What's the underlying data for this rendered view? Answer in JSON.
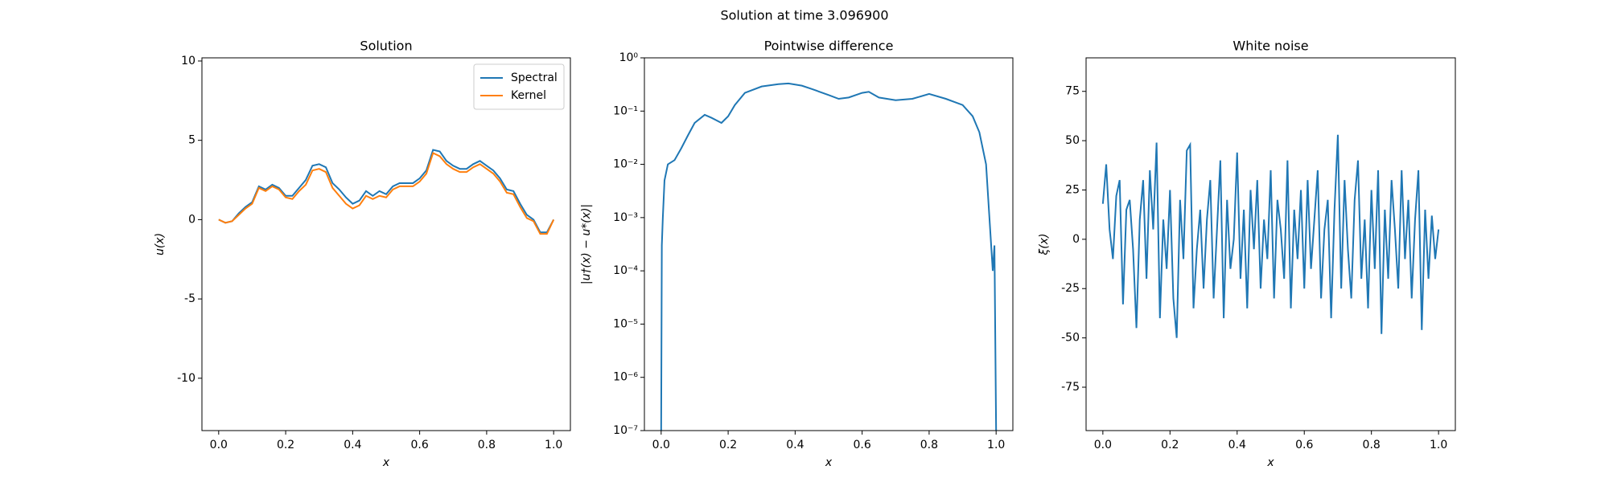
{
  "title": "Solution at time 3.096900",
  "chart_data": [
    {
      "type": "line",
      "title": "Solution",
      "xlabel": "x",
      "ylabel": "u(x)",
      "x": [
        0,
        0.02,
        0.04,
        0.06,
        0.08,
        0.1,
        0.12,
        0.14,
        0.16,
        0.18,
        0.2,
        0.22,
        0.24,
        0.26,
        0.28,
        0.3,
        0.32,
        0.34,
        0.36,
        0.38,
        0.4,
        0.42,
        0.44,
        0.46,
        0.48,
        0.5,
        0.52,
        0.54,
        0.56,
        0.58,
        0.6,
        0.62,
        0.64,
        0.66,
        0.68,
        0.7,
        0.72,
        0.74,
        0.76,
        0.78,
        0.8,
        0.82,
        0.84,
        0.86,
        0.88,
        0.9,
        0.92,
        0.94,
        0.96,
        0.98,
        1.0
      ],
      "series": [
        {
          "name": "Spectral",
          "color": "#1f77b4",
          "values": [
            0,
            -0.2,
            -0.1,
            0.4,
            0.8,
            1.1,
            2.1,
            1.9,
            2.2,
            2.0,
            1.5,
            1.5,
            2.0,
            2.5,
            3.4,
            3.5,
            3.3,
            2.3,
            1.9,
            1.4,
            1.0,
            1.2,
            1.8,
            1.5,
            1.8,
            1.6,
            2.1,
            2.3,
            2.3,
            2.3,
            2.6,
            3.1,
            4.4,
            4.3,
            3.7,
            3.4,
            3.2,
            3.2,
            3.5,
            3.7,
            3.4,
            3.1,
            2.6,
            1.9,
            1.8,
            1.0,
            0.3,
            0,
            -0.8,
            -0.8,
            0
          ]
        },
        {
          "name": "Kernel",
          "color": "#ff7f0e",
          "values": [
            0,
            -0.2,
            -0.1,
            0.3,
            0.7,
            1.0,
            2.0,
            1.8,
            2.1,
            1.9,
            1.4,
            1.3,
            1.8,
            2.2,
            3.1,
            3.2,
            3.0,
            2.0,
            1.5,
            1.0,
            0.7,
            0.9,
            1.5,
            1.3,
            1.5,
            1.4,
            1.9,
            2.1,
            2.1,
            2.1,
            2.4,
            2.9,
            4.2,
            4.0,
            3.5,
            3.2,
            3.0,
            3.0,
            3.3,
            3.5,
            3.2,
            2.9,
            2.4,
            1.7,
            1.6,
            0.8,
            0.1,
            -0.1,
            -0.9,
            -0.9,
            0
          ]
        }
      ],
      "xlim": [
        -0.05,
        1.05
      ],
      "ylim": [
        -13.3,
        10.2
      ],
      "xticks": [
        {
          "value": 0,
          "label": "0.0"
        },
        0.2,
        0.4,
        0.6,
        0.8,
        {
          "value": 1,
          "label": "1.0"
        }
      ],
      "yticks": [
        -10,
        -5,
        0,
        5,
        10
      ],
      "legend": "upper right"
    },
    {
      "type": "line",
      "title": "Pointwise difference",
      "xlabel": "x",
      "ylabel": "|u†(x) − u*(x)|",
      "log_y": true,
      "x": [
        0,
        0.002,
        0.005,
        0.01,
        0.02,
        0.04,
        0.06,
        0.08,
        0.1,
        0.13,
        0.15,
        0.18,
        0.2,
        0.22,
        0.25,
        0.3,
        0.35,
        0.38,
        0.42,
        0.45,
        0.5,
        0.53,
        0.56,
        0.6,
        0.62,
        0.65,
        0.7,
        0.75,
        0.8,
        0.85,
        0.9,
        0.93,
        0.95,
        0.97,
        0.98,
        0.99,
        0.995,
        1.0
      ],
      "series": [
        {
          "color": "#1f77b4",
          "values": [
            1e-07,
            0.0003,
            0.001,
            0.005,
            0.01,
            0.012,
            0.02,
            0.035,
            0.06,
            0.085,
            0.075,
            0.06,
            0.08,
            0.13,
            0.22,
            0.29,
            0.32,
            0.33,
            0.3,
            0.26,
            0.2,
            0.17,
            0.18,
            0.22,
            0.23,
            0.18,
            0.16,
            0.17,
            0.21,
            0.17,
            0.13,
            0.08,
            0.04,
            0.01,
            0.001,
            0.0001,
            0.0003,
            1e-07
          ]
        }
      ],
      "xlim": [
        -0.05,
        1.05
      ],
      "ylim": [
        1e-07,
        1
      ],
      "xticks": [
        {
          "value": 0,
          "label": "0.0"
        },
        0.2,
        0.4,
        0.6,
        0.8,
        {
          "value": 1,
          "label": "1.0"
        }
      ],
      "yticks": [
        {
          "value": 1e-07,
          "label": "10⁻⁷"
        },
        {
          "value": 1e-06,
          "label": "10⁻⁶"
        },
        {
          "value": 1e-05,
          "label": "10⁻⁵"
        },
        {
          "value": 0.0001,
          "label": "10⁻⁴"
        },
        {
          "value": 0.001,
          "label": "10⁻³"
        },
        {
          "value": 0.01,
          "label": "10⁻²"
        },
        {
          "value": 0.1,
          "label": "10⁻¹"
        },
        {
          "value": 1,
          "label": "10⁰"
        }
      ]
    },
    {
      "type": "line",
      "title": "White noise",
      "xlabel": "x",
      "ylabel": "ξ(x)",
      "x": [
        0,
        0.01,
        0.02,
        0.03,
        0.04,
        0.05,
        0.06,
        0.07,
        0.08,
        0.09,
        0.1,
        0.11,
        0.12,
        0.13,
        0.14,
        0.15,
        0.16,
        0.17,
        0.18,
        0.19,
        0.2,
        0.21,
        0.22,
        0.23,
        0.24,
        0.25,
        0.26,
        0.27,
        0.28,
        0.29,
        0.3,
        0.31,
        0.32,
        0.33,
        0.34,
        0.35,
        0.36,
        0.37,
        0.38,
        0.39,
        0.4,
        0.41,
        0.42,
        0.43,
        0.44,
        0.45,
        0.46,
        0.47,
        0.48,
        0.49,
        0.5,
        0.51,
        0.52,
        0.53,
        0.54,
        0.55,
        0.56,
        0.57,
        0.58,
        0.59,
        0.6,
        0.61,
        0.62,
        0.63,
        0.64,
        0.65,
        0.66,
        0.67,
        0.68,
        0.69,
        0.7,
        0.71,
        0.72,
        0.73,
        0.74,
        0.75,
        0.76,
        0.77,
        0.78,
        0.79,
        0.8,
        0.81,
        0.82,
        0.83,
        0.84,
        0.85,
        0.86,
        0.87,
        0.88,
        0.89,
        0.9,
        0.91,
        0.92,
        0.93,
        0.94,
        0.95,
        0.96,
        0.97,
        0.98,
        0.99,
        1.0
      ],
      "series": [
        {
          "color": "#1f77b4",
          "values": [
            18,
            38,
            5,
            -10,
            22,
            30,
            -33,
            15,
            20,
            -5,
            -45,
            10,
            30,
            -20,
            35,
            5,
            49,
            -40,
            10,
            -15,
            25,
            -30,
            -50,
            20,
            -10,
            45,
            48,
            -35,
            -5,
            15,
            -25,
            10,
            30,
            -30,
            5,
            40,
            -40,
            20,
            -15,
            0,
            44,
            -20,
            15,
            -35,
            25,
            -5,
            30,
            -25,
            10,
            -10,
            35,
            -30,
            20,
            5,
            -20,
            40,
            -35,
            15,
            -10,
            25,
            -25,
            30,
            -15,
            10,
            35,
            -30,
            5,
            20,
            -40,
            15,
            53,
            -25,
            30,
            -5,
            -30,
            20,
            40,
            -20,
            10,
            -35,
            25,
            -15,
            35,
            -48,
            15,
            -20,
            30,
            5,
            -25,
            35,
            -10,
            20,
            -30,
            10,
            35,
            -46,
            15,
            -20,
            12,
            -10,
            5
          ]
        }
      ],
      "xlim": [
        -0.05,
        1.05
      ],
      "ylim": [
        -97,
        92
      ],
      "xticks": [
        {
          "value": 0,
          "label": "0.0"
        },
        0.2,
        0.4,
        0.6,
        0.8,
        {
          "value": 1,
          "label": "1.0"
        }
      ],
      "yticks": [
        -75,
        -50,
        -25,
        0,
        25,
        50,
        75
      ]
    }
  ]
}
